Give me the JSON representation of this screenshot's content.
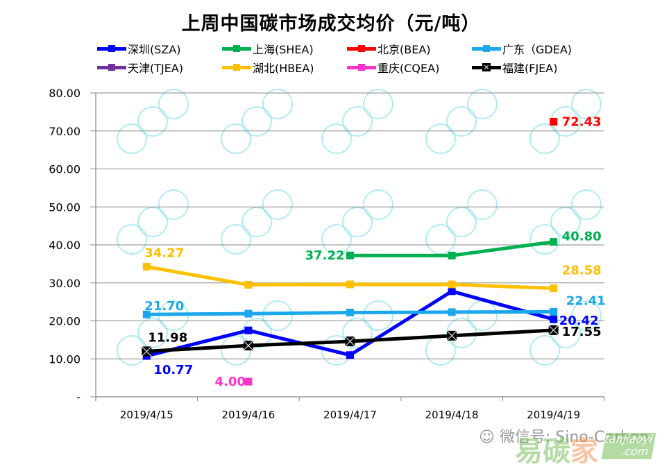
{
  "chart_data": {
    "type": "line",
    "title": "上周中国碳市场成交均价（元/吨）",
    "xlabel": "",
    "ylabel": "",
    "categories": [
      "2019/4/15",
      "2019/4/16",
      "2019/4/17",
      "2019/4/18",
      "2019/4/19"
    ],
    "ylim": [
      0,
      80
    ],
    "yticks": [
      0,
      10,
      20,
      30,
      40,
      50,
      60,
      70,
      80
    ],
    "ytick_labels": [
      "-",
      "10.00",
      "20.00",
      "30.00",
      "40.00",
      "50.00",
      "60.00",
      "70.00",
      "80.00"
    ],
    "grid": true,
    "legend_position": "top",
    "series": [
      {
        "name": "深圳(SZA)",
        "color": "#0000ff",
        "marker": "square",
        "values": [
          10.77,
          17.5,
          11.0,
          27.8,
          20.42
        ],
        "labels": [
          "10.77",
          null,
          null,
          null,
          "20.42"
        ]
      },
      {
        "name": "上海(SHEA)",
        "color": "#00b050",
        "marker": "square",
        "values": [
          null,
          null,
          37.22,
          37.2,
          40.8
        ],
        "labels": [
          null,
          null,
          "37.22",
          null,
          "40.80"
        ]
      },
      {
        "name": "北京(BEA)",
        "color": "#ff0000",
        "marker": "square",
        "values": [
          null,
          null,
          null,
          null,
          72.43
        ],
        "labels": [
          null,
          null,
          null,
          null,
          "72.43"
        ]
      },
      {
        "name": "广东（GDEA)",
        "color": "#1aa7ec",
        "marker": "square",
        "values": [
          21.7,
          21.9,
          22.2,
          22.3,
          22.41
        ],
        "labels": [
          "21.70",
          null,
          null,
          null,
          "22.41"
        ]
      },
      {
        "name": "天津(TJEA)",
        "color": "#7030a0",
        "marker": "square",
        "values": [
          null,
          null,
          null,
          null,
          null
        ],
        "labels": [
          null,
          null,
          null,
          null,
          null
        ]
      },
      {
        "name": "湖北(HBEA)",
        "color": "#ffc000",
        "marker": "square",
        "values": [
          34.27,
          29.5,
          29.6,
          29.6,
          28.58
        ],
        "labels": [
          "34.27",
          null,
          null,
          null,
          "28.58"
        ]
      },
      {
        "name": "重庆(CQEA)",
        "color": "#ff33cc",
        "marker": "square",
        "values": [
          null,
          4.0,
          null,
          null,
          null
        ],
        "labels": [
          null,
          "4.00",
          null,
          null,
          null
        ]
      },
      {
        "name": "福建(FJEA)",
        "color": "#000000",
        "marker": "x-square",
        "values": [
          11.98,
          13.5,
          14.6,
          16.1,
          17.55
        ],
        "labels": [
          "11.98",
          null,
          null,
          null,
          "17.55"
        ]
      }
    ]
  },
  "footer": {
    "wechat_label": "微信号: Sino-Carbon",
    "brand_cn": "易碳",
    "brand_cn2": "家",
    "brand_domain": "tanjiaoyi .com"
  }
}
